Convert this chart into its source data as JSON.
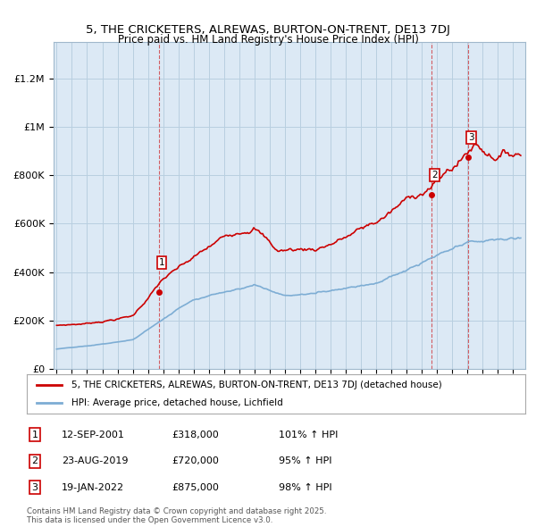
{
  "title": "5, THE CRICKETERS, ALREWAS, BURTON-ON-TRENT, DE13 7DJ",
  "subtitle": "Price paid vs. HM Land Registry's House Price Index (HPI)",
  "ylabel_ticks": [
    "£0",
    "£200K",
    "£400K",
    "£600K",
    "£800K",
    "£1M",
    "£1.2M"
  ],
  "ytick_vals": [
    0,
    200000,
    400000,
    600000,
    800000,
    1000000,
    1200000
  ],
  "ylim": [
    0,
    1350000
  ],
  "xlim_start": 1994.8,
  "xlim_end": 2025.8,
  "sale_year_floats": [
    2001.7,
    2019.65,
    2022.05
  ],
  "sale_prices": [
    318000,
    720000,
    875000
  ],
  "sale_annotations": [
    {
      "label": "1",
      "date": "12-SEP-2001",
      "price": "£318,000",
      "pct": "101% ↑ HPI"
    },
    {
      "label": "2",
      "date": "23-AUG-2019",
      "price": "£720,000",
      "pct": "95% ↑ HPI"
    },
    {
      "label": "3",
      "date": "19-JAN-2022",
      "price": "£875,000",
      "pct": "98% ↑ HPI"
    }
  ],
  "red_line_color": "#cc0000",
  "blue_line_color": "#7dadd4",
  "chart_bg_color": "#dce9f5",
  "background_color": "#ffffff",
  "grid_color": "#b8cfe0",
  "legend_text_red": "5, THE CRICKETERS, ALREWAS, BURTON-ON-TRENT, DE13 7DJ (detached house)",
  "legend_text_blue": "HPI: Average price, detached house, Lichfield",
  "footer": "Contains HM Land Registry data © Crown copyright and database right 2025.\nThis data is licensed under the Open Government Licence v3.0.",
  "dashed_line_color": "#cc0000",
  "dashed_line_alpha": 0.6
}
